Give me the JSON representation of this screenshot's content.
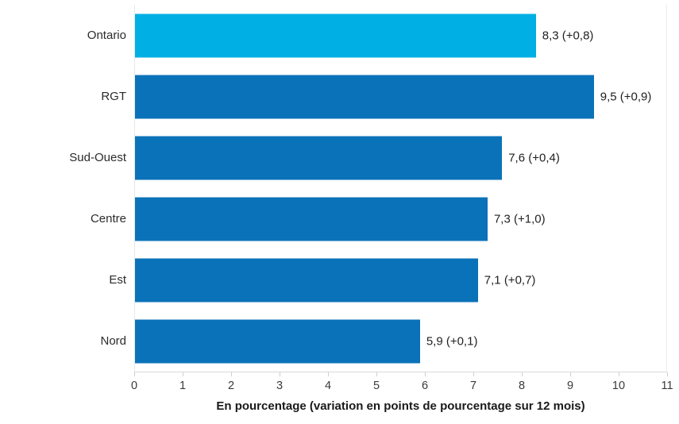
{
  "chart_data": {
    "type": "bar",
    "orientation": "horizontal",
    "title": "",
    "categories": [
      "Ontario",
      "RGT",
      "Sud-Ouest",
      "Centre",
      "Est",
      "Nord"
    ],
    "values": [
      8.3,
      9.5,
      7.6,
      7.3,
      7.1,
      5.9
    ],
    "deltas": [
      0.8,
      0.9,
      0.4,
      1.0,
      0.7,
      0.1
    ],
    "value_labels": [
      "8,3 (+0,8)",
      "9,5 (+0,9)",
      "7,6 (+0,4)",
      "7,3 (+1,0)",
      "7,1 (+0,7)",
      "5,9 (+0,1)"
    ],
    "bar_colors": [
      "#00b0e4",
      "#0a72b8",
      "#0a72b8",
      "#0a72b8",
      "#0a72b8",
      "#0a72b8"
    ],
    "highlight_color": "#00b0e4",
    "base_color": "#0a72b8",
    "xlabel": "En pourcentage (variation en points de pourcentage sur 12 mois)",
    "ylabel": "",
    "xlim": [
      0,
      11
    ],
    "xticks": [
      "0",
      "1",
      "2",
      "3",
      "4",
      "5",
      "6",
      "7",
      "8",
      "9",
      "10",
      "11"
    ],
    "grid": "off",
    "legend": "none",
    "axis_line_color": "#d9d9d9",
    "text_color": "#2b2b2b"
  }
}
